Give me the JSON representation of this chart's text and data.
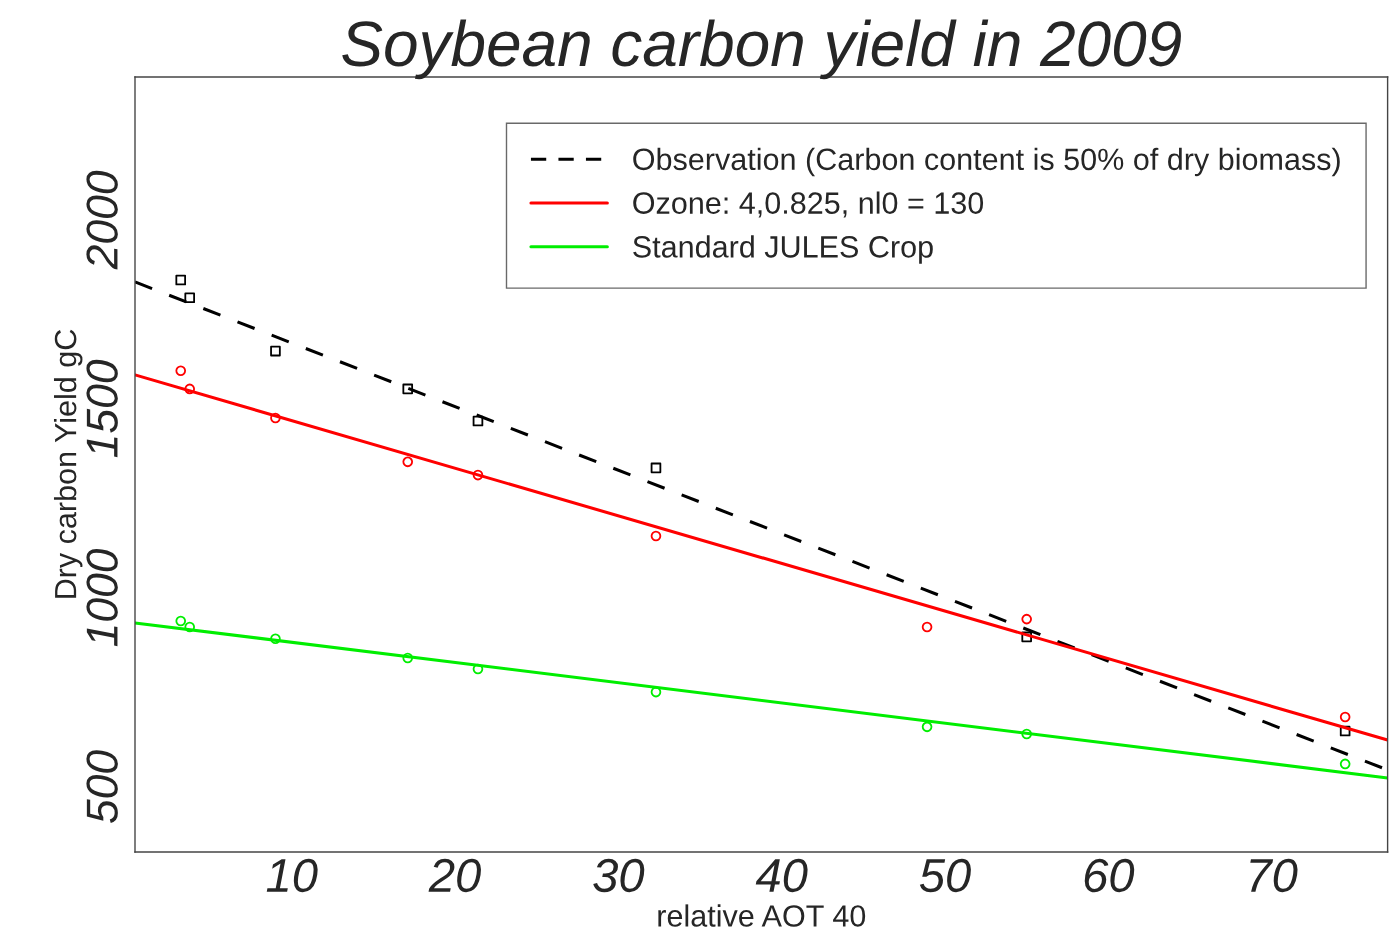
{
  "chart_data": {
    "type": "scatter",
    "title": "Soybean carbon yield in 2009",
    "xlabel": "relative AOT 40",
    "ylabel": "Dry carbon Yield gC",
    "xlim": [
      0.4,
      77.1
    ],
    "ylim": [
      328,
      2378
    ],
    "xticks": [
      10,
      20,
      30,
      40,
      50,
      60,
      70
    ],
    "yticks": [
      500,
      1000,
      1500,
      2000
    ],
    "grid": false,
    "legend": "top right",
    "series": [
      {
        "type": "line",
        "name": "Observation (Carbon content is 50% of dry biomass)",
        "color": "#000000",
        "line_style": "dashed",
        "x": [
          0.4,
          77.1
        ],
        "values": [
          1836,
          545
        ]
      },
      {
        "type": "line",
        "name": "Ozone: 4,0.825, nl0 = 130",
        "color": "#ff0000",
        "line_style": "solid",
        "x": [
          0.4,
          77.1
        ],
        "values": [
          1590,
          624
        ]
      },
      {
        "type": "line",
        "name": "Standard JULES Crop",
        "color": "#00ee00",
        "line_style": "solid",
        "x": [
          0.4,
          77.1
        ],
        "values": [
          934,
          524
        ]
      },
      {
        "color": "#000000",
        "marker": "square",
        "x": [
          3.2,
          3.75,
          9.0,
          17.1,
          21.4,
          32.3,
          48.9,
          55.0,
          74.5
        ],
        "values": [
          1841,
          1794,
          1653,
          1553,
          1468,
          1344,
          null,
          897,
          648
        ]
      },
      {
        "color": "#ff0000",
        "marker": "circle",
        "x": [
          3.2,
          3.75,
          9.0,
          17.1,
          21.4,
          32.3,
          48.9,
          55.0,
          74.5
        ],
        "values": [
          1601,
          1553,
          1476,
          1360,
          1325,
          1164,
          923,
          944,
          685
        ]
      },
      {
        "color": "#00ee00",
        "marker": "circle",
        "x": [
          3.2,
          3.75,
          9.0,
          17.1,
          21.4,
          32.3,
          48.9,
          55.0,
          74.5
        ],
        "values": [
          939,
          923,
          892,
          841,
          812,
          751,
          659,
          640,
          561
        ]
      }
    ]
  }
}
